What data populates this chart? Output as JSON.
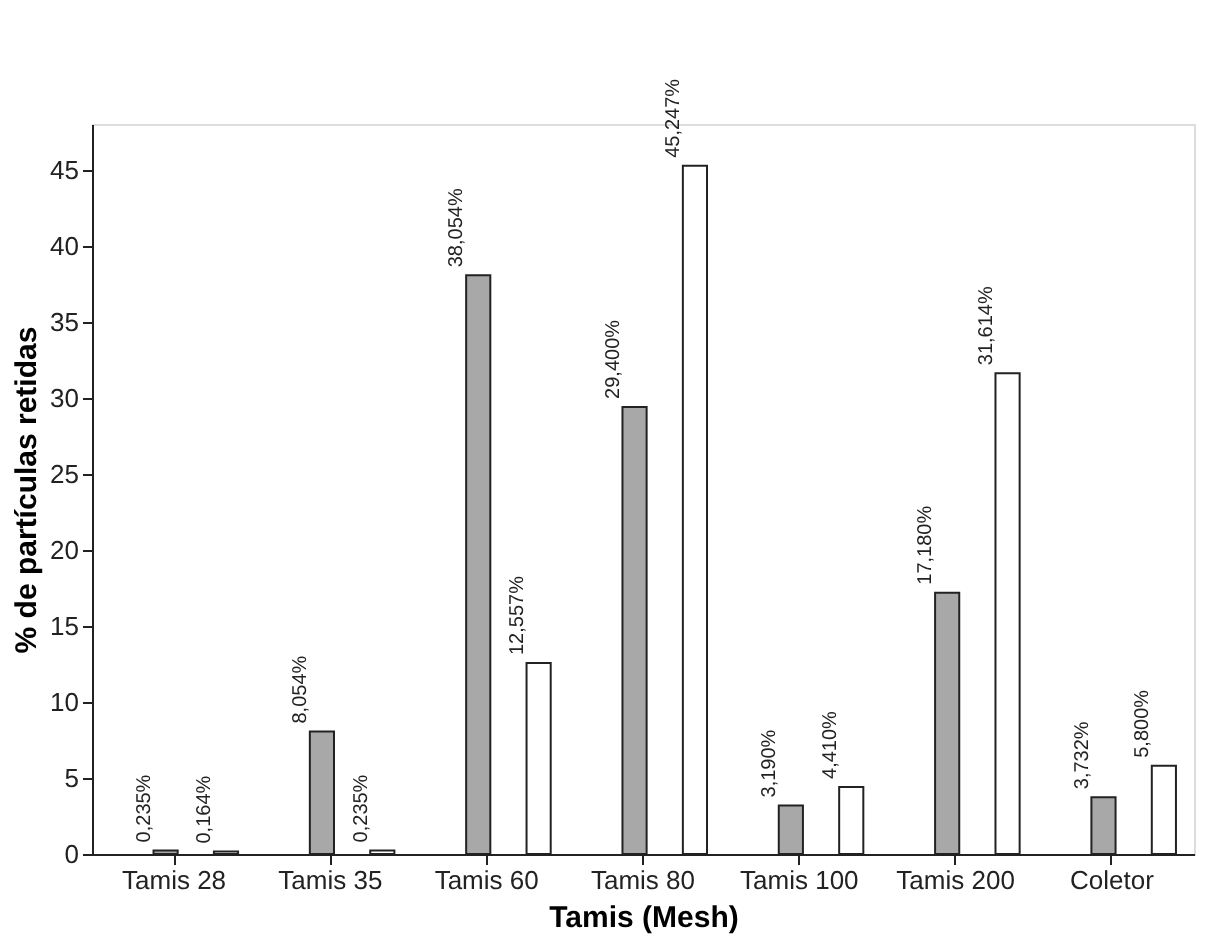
{
  "chart_data": {
    "type": "bar",
    "xlabel": "Tamis (Mesh)",
    "ylabel": "% de partículas retidas",
    "categories": [
      "Tamis 28",
      "Tamis 35",
      "Tamis 60",
      "Tamis 80",
      "Tamis 100",
      "Tamis 200",
      "Coletor"
    ],
    "series": [
      {
        "color": "#a8a8a8",
        "values": [
          0.235,
          8.054,
          38.054,
          29.4,
          3.19,
          17.18,
          3.732
        ],
        "value_labels": [
          "0,235%",
          "8,054%",
          "38,054%",
          "29,400%",
          "3,190%",
          "17,180%",
          "3,732%"
        ]
      },
      {
        "color": "#ffffff",
        "values": [
          0.164,
          0.235,
          12.557,
          45.247,
          4.41,
          31.614,
          5.8
        ],
        "value_labels": [
          "0,164%",
          "0,235%",
          "12,557%",
          "45,247%",
          "4,410%",
          "31,614%",
          "5,800%"
        ]
      }
    ],
    "ylim": [
      0,
      48
    ],
    "yticks": [
      0,
      5,
      10,
      15,
      20,
      25,
      30,
      35,
      40,
      45
    ],
    "grid": false,
    "legend": false
  }
}
